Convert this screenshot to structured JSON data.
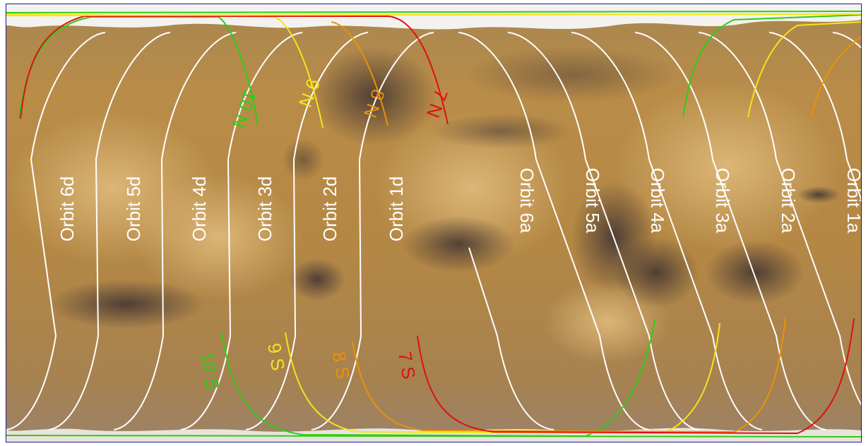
{
  "colors": {
    "frame": "#1a1a8c",
    "terrain_base": "#b88a45",
    "terrain_light": "#d8b070",
    "terrain_dark": "#4a3a38",
    "polar_cap": "#f4f2ee",
    "orbit_white": "#ffffff",
    "orbit_red": "#e01010",
    "orbit_orange": "#e8920a",
    "orbit_yellow": "#f4e41a",
    "orbit_green": "#30cc18"
  },
  "descending_orbits": [
    "Orbit 6d",
    "Orbit 5d",
    "Orbit 4d",
    "Orbit 3d",
    "Orbit 2d",
    "Orbit 1d"
  ],
  "ascending_orbits": [
    "Orbit 6a",
    "Orbit 5a",
    "Orbit 4a",
    "Orbit 3a",
    "Orbit 2a",
    "Orbit 1a"
  ],
  "north_labels": [
    {
      "text": "10 N",
      "color": "#30cc18"
    },
    {
      "text": "9 N",
      "color": "#f4e41a"
    },
    {
      "text": "8 N",
      "color": "#e8920a"
    },
    {
      "text": "7 N",
      "color": "#e01010"
    }
  ],
  "south_labels": [
    {
      "text": "10 S",
      "color": "#30cc18"
    },
    {
      "text": "9 S",
      "color": "#f4e41a"
    },
    {
      "text": "8 S",
      "color": "#e8920a"
    },
    {
      "text": "7 S",
      "color": "#e01010"
    }
  ]
}
